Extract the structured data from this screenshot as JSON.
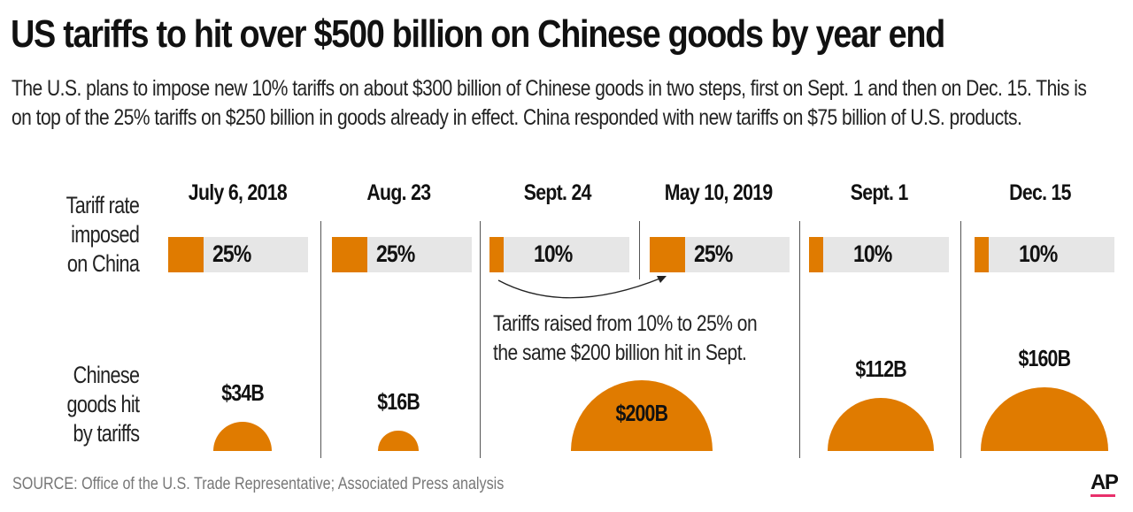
{
  "title": "US tariffs to hit over $500 billion on Chinese goods by year end",
  "subtitle": "The U.S. plans to impose new 10% tariffs on about $300 billion of Chinese goods in two steps, first on Sept. 1 and then on Dec. 15. This is on top of the 25% tariffs on $250 billion in goods already in effect. China responded with new tariffs on $75 billion of U.S. products.",
  "row_labels": {
    "rate": [
      "Tariff rate",
      "imposed",
      "on China"
    ],
    "goods": [
      "Chinese",
      "goods hit",
      "by tariffs"
    ]
  },
  "annotation": [
    "Tariffs raised from 10% to 25% on",
    "the same $200 billion hit in Sept."
  ],
  "source": "SOURCE: Office of the U.S. Trade Representative; Associated Press analysis",
  "logo": "AP",
  "colors": {
    "accent": "#e07b00",
    "bar_track": "#e6e6e6",
    "logo_underline": "#e8306b"
  },
  "chart_data": {
    "type": "bar",
    "categories": [
      "July 6, 2018",
      "Aug. 23",
      "Sept. 24",
      "May 10, 2019",
      "Sept. 1",
      "Dec. 15"
    ],
    "series": [
      {
        "name": "Tariff rate imposed on China",
        "values": [
          25,
          25,
          10,
          25,
          10,
          10
        ],
        "labels": [
          "25%",
          "25%",
          "10%",
          "25%",
          "10%",
          "10%"
        ],
        "unit": "%",
        "xlim": [
          0,
          100
        ]
      },
      {
        "name": "Chinese goods hit by tariffs",
        "values": [
          34,
          16,
          200,
          null,
          112,
          160
        ],
        "labels": [
          "$34B",
          "$16B",
          "$200B",
          "",
          "$112B",
          "$160B"
        ],
        "unit": "billion USD",
        "shape": "semicircle area"
      }
    ]
  }
}
